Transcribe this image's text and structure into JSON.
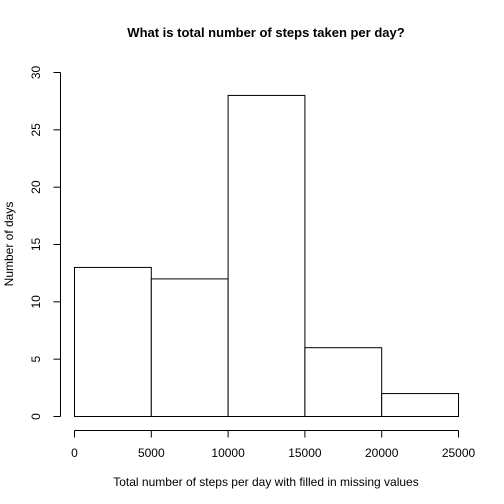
{
  "chart_data": {
    "type": "bar",
    "title": "What is total number of steps taken per day?",
    "xlabel": "Total number of steps per day with filled in missing values",
    "ylabel": "Number of days",
    "bins": [
      {
        "from": 0,
        "to": 5000,
        "count": 13
      },
      {
        "from": 5000,
        "to": 10000,
        "count": 12
      },
      {
        "from": 10000,
        "to": 15000,
        "count": 28
      },
      {
        "from": 15000,
        "to": 20000,
        "count": 6
      },
      {
        "from": 20000,
        "to": 25000,
        "count": 2
      }
    ],
    "xlim": [
      0,
      25000
    ],
    "ylim": [
      0,
      30
    ],
    "x_ticks": [
      0,
      5000,
      10000,
      15000,
      20000,
      25000
    ],
    "y_ticks": [
      0,
      5,
      10,
      15,
      20,
      25,
      30
    ],
    "grid": false,
    "legend": "none"
  }
}
